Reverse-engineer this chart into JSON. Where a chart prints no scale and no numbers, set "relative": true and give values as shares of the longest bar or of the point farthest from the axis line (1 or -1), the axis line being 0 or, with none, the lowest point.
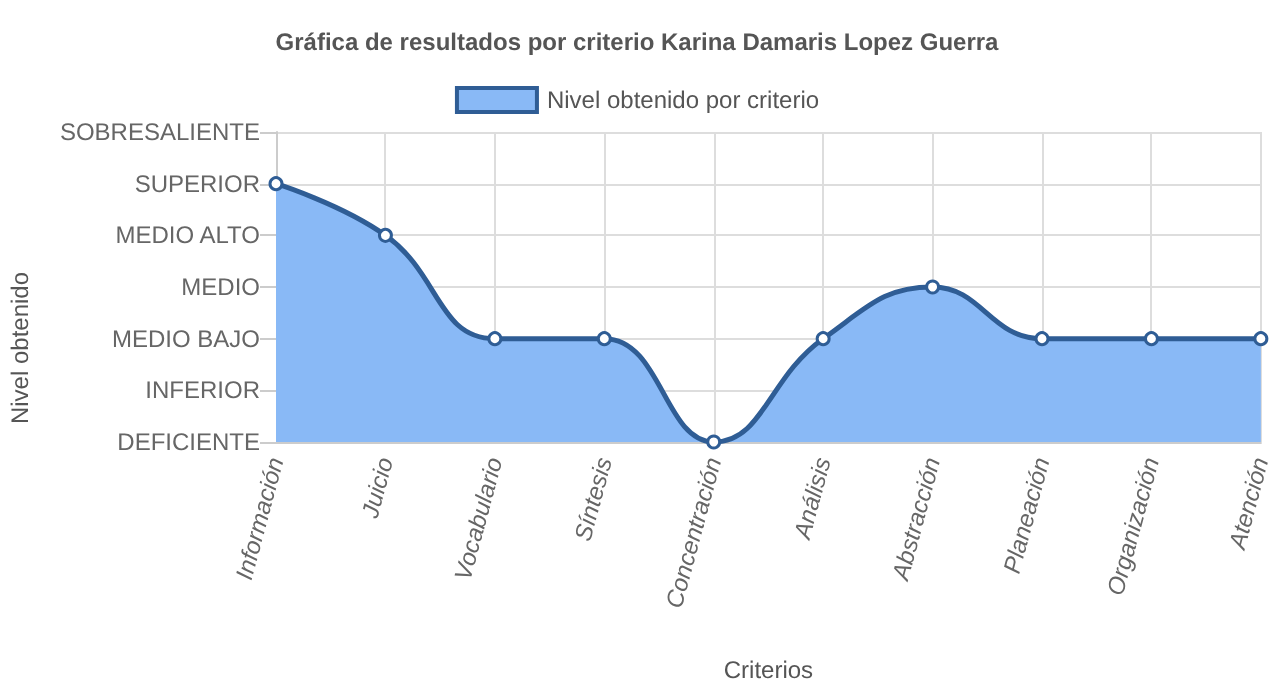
{
  "chart_data": {
    "type": "area",
    "title": "Gráfica de resultados por criterio Karina Damaris Lopez Guerra",
    "xlabel": "Criterios",
    "categories": [
      "Información",
      "Juicio",
      "Vocabulario",
      "Síntesis",
      "Concentración",
      "Análisis",
      "Abstracción",
      "Planeación",
      "Organización",
      "Atención"
    ],
    "series": [
      {
        "name": "Nivel obtenido por criterio",
        "color": "#89b9f6",
        "values": [
          1,
          0.8,
          0.4,
          0.4,
          0,
          0.4,
          0.6,
          0.4,
          0.4,
          0.4
        ]
      }
    ],
    "relative": true,
    "annotations": [
      "Nivel obtenido",
      "DEFICIENTE",
      "INFERIOR",
      "MEDIO BAJO",
      "MEDIO",
      "MEDIO ALTO",
      "SUPERIOR",
      "SOBRESALIENTE"
    ],
    "grid": true,
    "legend": "top",
    "marker": "circle",
    "line_style": "solid"
  }
}
